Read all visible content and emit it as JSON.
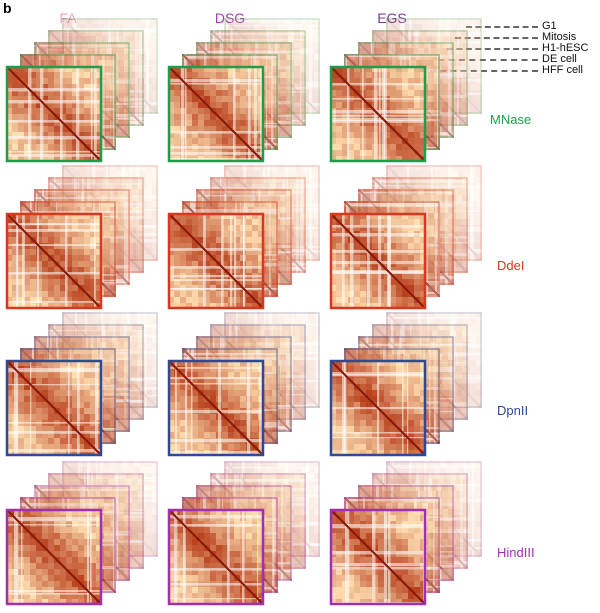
{
  "panel_label": "b",
  "columns": [
    {
      "label": "FA",
      "color": "#f4a0b6"
    },
    {
      "label": "DSG",
      "color": "#a63db5"
    },
    {
      "label": "EGS",
      "color": "#7a3a9c"
    }
  ],
  "rows": [
    {
      "label": "MNase",
      "color": "#1e9e4c"
    },
    {
      "label": "DdeI",
      "color": "#d9371e"
    },
    {
      "label": "DpnII",
      "color": "#2f4a94"
    },
    {
      "label": "HindIII",
      "color": "#a030b0"
    }
  ],
  "legend": [
    "G1",
    "Mitosis",
    "H1-hESC",
    "DE cell",
    "HFF cell"
  ],
  "layers_per_stack": 5,
  "heatmap_colors": {
    "low": "#ffffff",
    "mid": "#f7b36a",
    "high": "#b8250c"
  }
}
